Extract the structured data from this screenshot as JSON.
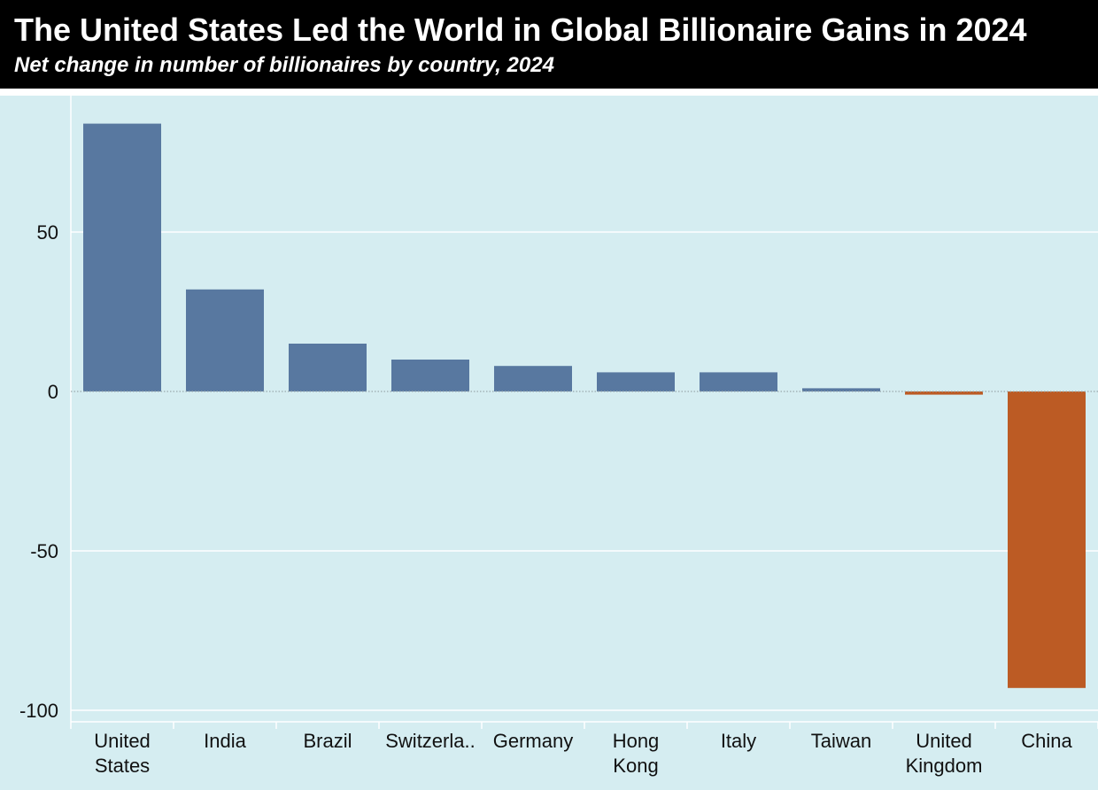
{
  "header": {
    "title": "The United States Led the World in Global Billionaire Gains in 2024",
    "subtitle": "Net change in number of billionaires by country, 2024"
  },
  "colors": {
    "positive": "#5878a0",
    "negative": "#bc5b24",
    "header_bg": "#000000",
    "plot_bg": "#d5edf1"
  },
  "chart_data": {
    "type": "bar",
    "title": "The United States Led the World in Global Billionaire Gains in 2024",
    "subtitle": "Net change in number of billionaires by country, 2024",
    "xlabel": "",
    "ylabel": "",
    "categories": [
      "United States",
      "India",
      "Brazil",
      "Switzerland",
      "Germany",
      "Hong Kong",
      "Italy",
      "Taiwan",
      "United Kingdom",
      "China"
    ],
    "category_labels": [
      [
        "United",
        "States"
      ],
      [
        "India"
      ],
      [
        "Brazil"
      ],
      [
        "Switzerla.."
      ],
      [
        "Germany"
      ],
      [
        "Hong",
        "Kong"
      ],
      [
        "Italy"
      ],
      [
        "Taiwan"
      ],
      [
        "United",
        "Kingdom"
      ],
      [
        "China"
      ]
    ],
    "values": [
      84,
      32,
      15,
      10,
      8,
      6,
      6,
      1,
      -1,
      -93
    ],
    "ylim": [
      -100,
      90
    ],
    "yticks": [
      50,
      0,
      -50,
      -100
    ],
    "grid": true,
    "legend": "none"
  }
}
